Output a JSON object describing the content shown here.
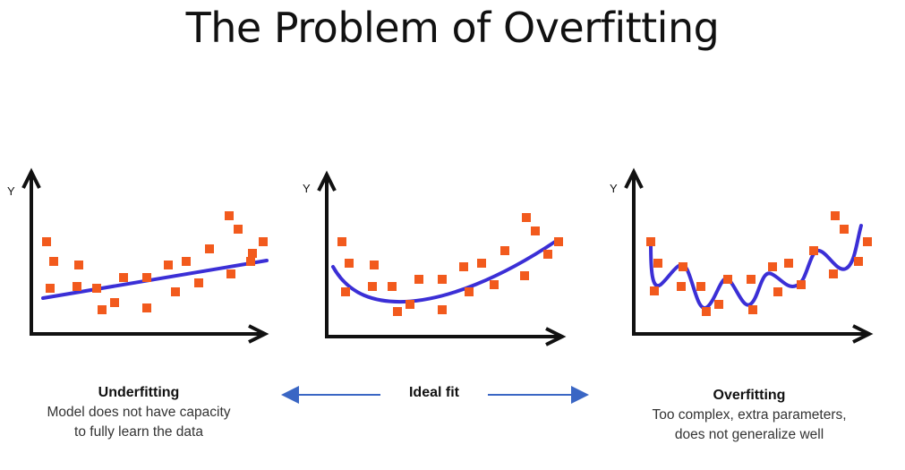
{
  "title": "The Problem of Overfitting",
  "colors": {
    "point": "#f25a1d",
    "curve": "#3b2fd6",
    "arrow": "#3a66c4",
    "axis": "#111111"
  },
  "panels": [
    {
      "axis_label": "Y",
      "heading": "Underfitting",
      "description_line1": "Model does not have capacity",
      "description_line2": "to fully learn the data"
    },
    {
      "axis_label": "Y",
      "heading": "Ideal fit"
    },
    {
      "axis_label": "Y",
      "heading": "Overfitting",
      "description_line1": "Too complex, extra parameters,",
      "description_line2": "does not generalize well"
    }
  ]
}
